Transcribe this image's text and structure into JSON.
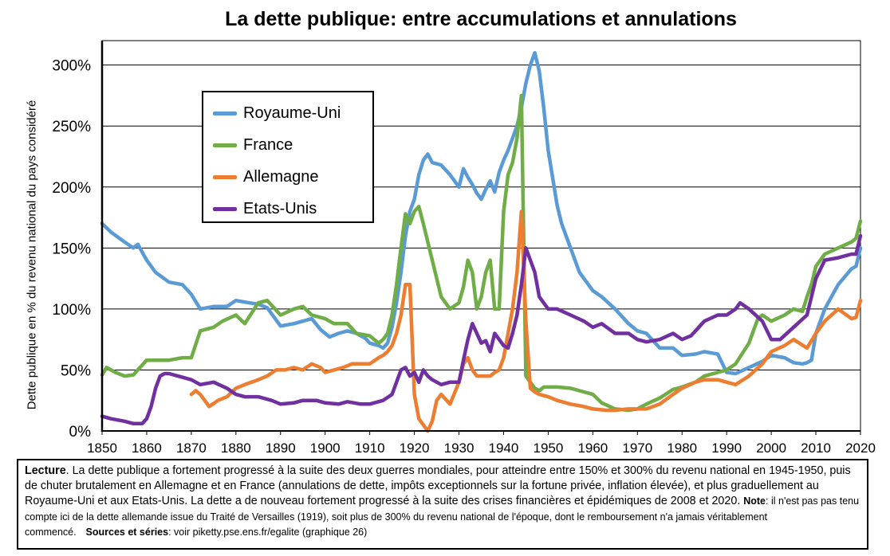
{
  "chart_data": {
    "type": "line",
    "title": "La dette publique: entre accumulations et annulations",
    "ylabel": "Dette publique en % du revenu national du pays considéré",
    "xlim": [
      1850,
      2020
    ],
    "ylim": [
      0,
      320
    ],
    "x_ticks": [
      "1850",
      "1860",
      "1870",
      "1880",
      "1890",
      "1900",
      "1910",
      "1920",
      "1930",
      "1940",
      "1950",
      "1960",
      "1970",
      "1980",
      "1990",
      "2000",
      "2010",
      "2020"
    ],
    "y_ticks": [
      "0%",
      "50%",
      "100%",
      "150%",
      "200%",
      "250%",
      "300%"
    ],
    "grid": true,
    "legend_position": "top-left",
    "series": [
      {
        "name": "Royaume-Uni",
        "color": "#5b9bd5",
        "x": [
          1850,
          1852,
          1855,
          1857,
          1858,
          1860,
          1862,
          1865,
          1868,
          1870,
          1872,
          1875,
          1878,
          1880,
          1883,
          1885,
          1887,
          1890,
          1893,
          1895,
          1897,
          1899,
          1901,
          1903,
          1905,
          1907,
          1909,
          1910,
          1912,
          1913,
          1914,
          1915,
          1916,
          1917,
          1918,
          1919,
          1920,
          1921,
          1922,
          1923,
          1924,
          1926,
          1928,
          1930,
          1931,
          1932,
          1933,
          1934,
          1935,
          1936,
          1937,
          1938,
          1939,
          1940,
          1941,
          1942,
          1943,
          1944,
          1945,
          1946,
          1947,
          1948,
          1949,
          1950,
          1952,
          1953,
          1955,
          1957,
          1960,
          1962,
          1965,
          1968,
          1970,
          1972,
          1975,
          1978,
          1980,
          1983,
          1985,
          1988,
          1990,
          1992,
          1995,
          1998,
          2000,
          2003,
          2005,
          2007,
          2008,
          2009,
          2010,
          2012,
          2015,
          2018,
          2019,
          2020
        ],
        "values": [
          170,
          163,
          155,
          150,
          153,
          140,
          130,
          122,
          120,
          112,
          100,
          102,
          102,
          107,
          105,
          104,
          101,
          86,
          88,
          90,
          92,
          83,
          77,
          80,
          82,
          80,
          76,
          72,
          70,
          68,
          72,
          85,
          105,
          130,
          160,
          180,
          190,
          210,
          222,
          227,
          220,
          218,
          210,
          200,
          215,
          208,
          202,
          195,
          190,
          198,
          205,
          196,
          212,
          222,
          230,
          240,
          250,
          265,
          285,
          300,
          310,
          295,
          265,
          230,
          185,
          170,
          150,
          130,
          115,
          110,
          100,
          88,
          82,
          80,
          68,
          68,
          62,
          63,
          65,
          63,
          48,
          47,
          52,
          57,
          62,
          60,
          56,
          55,
          56,
          58,
          80,
          100,
          120,
          133,
          135,
          150
        ]
      },
      {
        "name": "France",
        "color": "#70ad47",
        "x": [
          1850,
          1851,
          1853,
          1855,
          1857,
          1858,
          1860,
          1862,
          1865,
          1868,
          1870,
          1872,
          1875,
          1877,
          1880,
          1882,
          1885,
          1887,
          1890,
          1893,
          1895,
          1897,
          1900,
          1902,
          1905,
          1907,
          1910,
          1912,
          1913,
          1914,
          1915,
          1916,
          1917,
          1918,
          1919,
          1920,
          1921,
          1922,
          1923,
          1924,
          1926,
          1928,
          1930,
          1931,
          1932,
          1933,
          1934,
          1935,
          1936,
          1937,
          1938,
          1939,
          1940,
          1941,
          1942,
          1943,
          1944,
          1945,
          1946,
          1947,
          1948,
          1949,
          1950,
          1952,
          1955,
          1958,
          1960,
          1962,
          1965,
          1968,
          1970,
          1972,
          1975,
          1978,
          1980,
          1983,
          1985,
          1988,
          1990,
          1992,
          1995,
          1997,
          1998,
          2000,
          2003,
          2005,
          2007,
          2008,
          2009,
          2010,
          2012,
          2015,
          2018,
          2019,
          2020
        ],
        "values": [
          46,
          52,
          48,
          45,
          46,
          50,
          58,
          58,
          58,
          60,
          60,
          82,
          85,
          90,
          95,
          88,
          105,
          107,
          95,
          100,
          102,
          95,
          92,
          88,
          88,
          80,
          78,
          72,
          75,
          80,
          95,
          120,
          150,
          178,
          170,
          180,
          184,
          170,
          155,
          140,
          110,
          100,
          105,
          118,
          140,
          130,
          100,
          110,
          130,
          140,
          100,
          100,
          180,
          210,
          220,
          240,
          275,
          45,
          40,
          35,
          33,
          36,
          36,
          36,
          35,
          32,
          30,
          23,
          18,
          17,
          18,
          22,
          27,
          34,
          36,
          40,
          45,
          48,
          50,
          55,
          72,
          92,
          95,
          90,
          95,
          100,
          98,
          110,
          120,
          135,
          145,
          150,
          155,
          158,
          172
        ]
      },
      {
        "name": "Allemagne",
        "color": "#ed7d31",
        "x": [
          1870,
          1871,
          1872,
          1874,
          1876,
          1878,
          1880,
          1882,
          1885,
          1887,
          1889,
          1891,
          1893,
          1895,
          1897,
          1899,
          1900,
          1902,
          1904,
          1906,
          1908,
          1910,
          1912,
          1913,
          1914,
          1915,
          1916,
          1917,
          1918,
          1919,
          1920,
          1921,
          1922,
          1923,
          1924,
          1925,
          1926,
          1928,
          1930,
          1931,
          1932,
          1933,
          1934,
          1935,
          1936,
          1937,
          1938,
          1939,
          1940,
          1941,
          1942,
          1943,
          1944,
          1945,
          1946,
          1947,
          1948,
          1950,
          1952,
          1955,
          1958,
          1960,
          1963,
          1965,
          1968,
          1970,
          1972,
          1975,
          1978,
          1980,
          1983,
          1985,
          1988,
          1990,
          1992,
          1995,
          1998,
          2000,
          2003,
          2005,
          2008,
          2010,
          2012,
          2015,
          2018,
          2019,
          2020
        ],
        "values": [
          30,
          33,
          30,
          20,
          25,
          28,
          35,
          38,
          42,
          45,
          50,
          50,
          52,
          50,
          55,
          52,
          48,
          50,
          52,
          55,
          55,
          55,
          60,
          62,
          65,
          70,
          80,
          95,
          120,
          120,
          30,
          10,
          5,
          0,
          8,
          25,
          30,
          22,
          40,
          55,
          60,
          50,
          45,
          45,
          45,
          45,
          48,
          50,
          60,
          80,
          100,
          130,
          180,
          90,
          35,
          32,
          30,
          28,
          25,
          22,
          20,
          18,
          17,
          17,
          18,
          18,
          18,
          22,
          30,
          35,
          40,
          42,
          42,
          40,
          38,
          45,
          55,
          65,
          70,
          75,
          68,
          80,
          90,
          100,
          92,
          93,
          107
        ]
      },
      {
        "name": "Etats-Unis",
        "color": "#7030a0",
        "x": [
          1850,
          1852,
          1855,
          1857,
          1859,
          1860,
          1861,
          1862,
          1863,
          1864,
          1865,
          1867,
          1870,
          1872,
          1875,
          1878,
          1880,
          1882,
          1885,
          1888,
          1890,
          1893,
          1895,
          1898,
          1900,
          1903,
          1905,
          1908,
          1910,
          1913,
          1915,
          1917,
          1918,
          1919,
          1920,
          1921,
          1922,
          1923,
          1924,
          1926,
          1928,
          1930,
          1931,
          1932,
          1933,
          1934,
          1935,
          1936,
          1937,
          1938,
          1939,
          1940,
          1941,
          1942,
          1943,
          1944,
          1945,
          1946,
          1947,
          1948,
          1950,
          1952,
          1955,
          1958,
          1960,
          1962,
          1965,
          1968,
          1970,
          1972,
          1975,
          1978,
          1980,
          1982,
          1985,
          1988,
          1990,
          1992,
          1993,
          1995,
          1998,
          2000,
          2002,
          2005,
          2008,
          2009,
          2010,
          2012,
          2015,
          2018,
          2019,
          2020
        ],
        "values": [
          12,
          10,
          8,
          6,
          6,
          10,
          20,
          35,
          45,
          47,
          47,
          45,
          42,
          38,
          40,
          35,
          30,
          28,
          28,
          25,
          22,
          23,
          25,
          25,
          23,
          22,
          24,
          22,
          22,
          25,
          30,
          50,
          52,
          45,
          48,
          40,
          50,
          45,
          42,
          38,
          40,
          40,
          58,
          75,
          88,
          80,
          72,
          74,
          65,
          80,
          75,
          70,
          68,
          80,
          95,
          120,
          150,
          140,
          130,
          110,
          100,
          100,
          95,
          90,
          85,
          88,
          80,
          80,
          75,
          73,
          75,
          80,
          75,
          78,
          90,
          95,
          95,
          100,
          105,
          100,
          90,
          75,
          75,
          85,
          95,
          110,
          125,
          140,
          142,
          145,
          145,
          160
        ]
      }
    ]
  },
  "lecture": {
    "label": "Lecture",
    "text1": ". La dette publique a fortement progressé à la suite des deux guerres mondiales, pour atteindre entre 150% et 300% du revenu national en 1945-1950, puis de chuter brutalement en Allemagne et en France (annulations de dette, impôts exceptionnels sur la fortune privée, inflation élevée), et plus graduellement au Royaume-Uni et aux Etats-Unis. La dette a de nouveau fortement progressé à la suite des crises financières et épidémiques de 2008 et 2020. ",
    "note_label": "Note",
    "note_text": ": il n'est pas pas tenu compte ici de la dette allemande issue du Traité de Versailles (1919), soit plus de 300% du revenu national de l'époque, dont le remboursement n'a jamais véritablement commencé.",
    "sources_label": "Sources et séries",
    "sources_text": ": voir piketty.pse.ens.fr/egalite (graphique 26)"
  }
}
